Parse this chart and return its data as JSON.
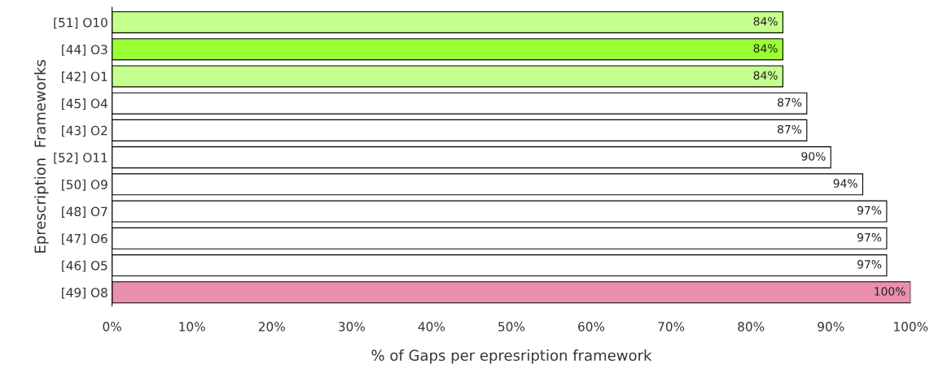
{
  "chart_data": {
    "type": "bar",
    "orientation": "horizontal",
    "xlabel": "% of Gaps per epresription framework",
    "ylabel": "Eprescription  Frameworks",
    "categories": [
      "[51] O10",
      "[44] O3",
      "[42] O1",
      "[45] O4",
      "[43] O2",
      "[52] O11",
      "[50] O9",
      "[48] O7",
      "[47] O6",
      "[46] O5",
      "[49] O8"
    ],
    "values": [
      84,
      84,
      84,
      87,
      87,
      90,
      94,
      97,
      97,
      97,
      100
    ],
    "colors": [
      "#c5ff8d",
      "#99ff33",
      "#c5ff8d",
      "#ffffff",
      "#ffffff",
      "#ffffff",
      "#ffffff",
      "#ffffff",
      "#ffffff",
      "#ffffff",
      "#ea8fae"
    ],
    "value_labels": [
      "84%",
      "84%",
      "84%",
      "87%",
      "87%",
      "90%",
      "94%",
      "97%",
      "97%",
      "97%",
      "100%"
    ],
    "xlim": [
      0,
      100
    ],
    "xticks": [
      {
        "value": 0,
        "label": "0%"
      },
      {
        "value": 10,
        "label": "10%"
      },
      {
        "value": 20,
        "label": "20%"
      },
      {
        "value": 30,
        "label": "30%"
      },
      {
        "value": 40,
        "label": "40%"
      },
      {
        "value": 50,
        "label": "50%"
      },
      {
        "value": 60,
        "label": "60%"
      },
      {
        "value": 70,
        "label": "70%"
      },
      {
        "value": 80,
        "label": "80%"
      },
      {
        "value": 90,
        "label": "90%"
      },
      {
        "value": 100,
        "label": "100%"
      }
    ],
    "grid": false,
    "legend": false
  }
}
